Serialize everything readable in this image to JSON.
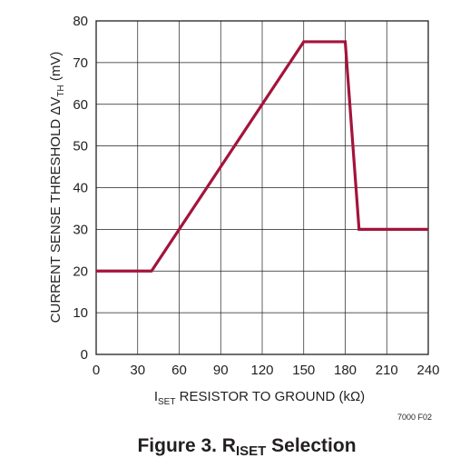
{
  "chart_data": {
    "type": "line",
    "x_ticks": [
      "0",
      "30",
      "60",
      "90",
      "120",
      "150",
      "180",
      "210",
      "240"
    ],
    "y_ticks": [
      "0",
      "10",
      "20",
      "30",
      "40",
      "50",
      "60",
      "70",
      "80"
    ],
    "xlim": [
      0,
      240
    ],
    "ylim": [
      0,
      80
    ],
    "grid": true,
    "series": [
      {
        "x": [
          0,
          40,
          150,
          180,
          190,
          240
        ],
        "y": [
          20,
          20,
          75,
          75,
          30,
          30
        ],
        "color": "#a3143c"
      }
    ],
    "xlabel": {
      "part1": "I",
      "sub": "SET",
      "part2": " RESISTOR TO GROUND (kΩ)"
    },
    "ylabel": {
      "part1": "CURRENT SENSE THRESHOLD ΔV",
      "sub": "TH",
      "part2": " (mV)"
    },
    "figure_code": "7000 F02",
    "caption": {
      "part1": "Figure 3. R",
      "sub": "ISET",
      "part2": " Selection"
    }
  }
}
